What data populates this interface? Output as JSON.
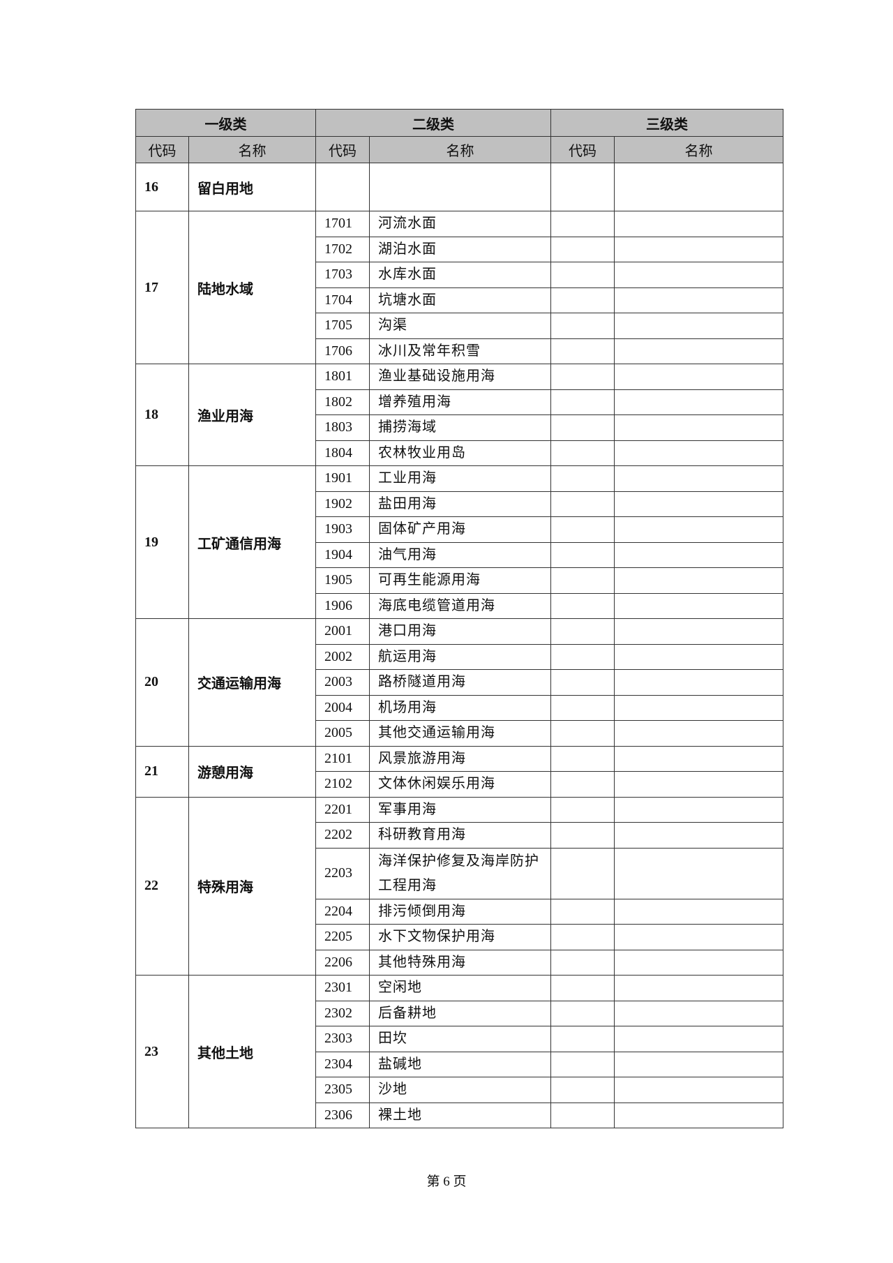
{
  "header": {
    "level1": "一级类",
    "level2": "二级类",
    "level3": "三级类",
    "code": "代码",
    "name": "名称"
  },
  "groups": [
    {
      "code": "16",
      "name": "留白用地",
      "items": []
    },
    {
      "code": "17",
      "name": "陆地水域",
      "items": [
        {
          "code": "1701",
          "name": "河流水面"
        },
        {
          "code": "1702",
          "name": "湖泊水面"
        },
        {
          "code": "1703",
          "name": "水库水面"
        },
        {
          "code": "1704",
          "name": "坑塘水面"
        },
        {
          "code": "1705",
          "name": "沟渠"
        },
        {
          "code": "1706",
          "name": "冰川及常年积雪"
        }
      ]
    },
    {
      "code": "18",
      "name": "渔业用海",
      "items": [
        {
          "code": "1801",
          "name": "渔业基础设施用海"
        },
        {
          "code": "1802",
          "name": "增养殖用海"
        },
        {
          "code": "1803",
          "name": "捕捞海域"
        },
        {
          "code": "1804",
          "name": "农林牧业用岛"
        }
      ]
    },
    {
      "code": "19",
      "name": "工矿通信用海",
      "items": [
        {
          "code": "1901",
          "name": "工业用海"
        },
        {
          "code": "1902",
          "name": "盐田用海"
        },
        {
          "code": "1903",
          "name": "固体矿产用海"
        },
        {
          "code": "1904",
          "name": "油气用海"
        },
        {
          "code": "1905",
          "name": "可再生能源用海"
        },
        {
          "code": "1906",
          "name": "海底电缆管道用海"
        }
      ]
    },
    {
      "code": "20",
      "name": "交通运输用海",
      "items": [
        {
          "code": "2001",
          "name": "港口用海"
        },
        {
          "code": "2002",
          "name": "航运用海"
        },
        {
          "code": "2003",
          "name": "路桥隧道用海"
        },
        {
          "code": "2004",
          "name": "机场用海"
        },
        {
          "code": "2005",
          "name": "其他交通运输用海"
        }
      ]
    },
    {
      "code": "21",
      "name": "游憩用海",
      "items": [
        {
          "code": "2101",
          "name": "风景旅游用海"
        },
        {
          "code": "2102",
          "name": "文体休闲娱乐用海"
        }
      ]
    },
    {
      "code": "22",
      "name": "特殊用海",
      "items": [
        {
          "code": "2201",
          "name": "军事用海"
        },
        {
          "code": "2202",
          "name": "科研教育用海"
        },
        {
          "code": "2203",
          "name": "海洋保护修复及海岸防护工程用海"
        },
        {
          "code": "2204",
          "name": "排污倾倒用海"
        },
        {
          "code": "2205",
          "name": "水下文物保护用海"
        },
        {
          "code": "2206",
          "name": "其他特殊用海"
        }
      ]
    },
    {
      "code": "23",
      "name": "其他土地",
      "items": [
        {
          "code": "2301",
          "name": "空闲地"
        },
        {
          "code": "2302",
          "name": "后备耕地"
        },
        {
          "code": "2303",
          "name": "田坎"
        },
        {
          "code": "2304",
          "name": "盐碱地"
        },
        {
          "code": "2305",
          "name": "沙地"
        },
        {
          "code": "2306",
          "name": "裸土地"
        }
      ]
    }
  ],
  "footer": {
    "page": "第 6 页"
  }
}
